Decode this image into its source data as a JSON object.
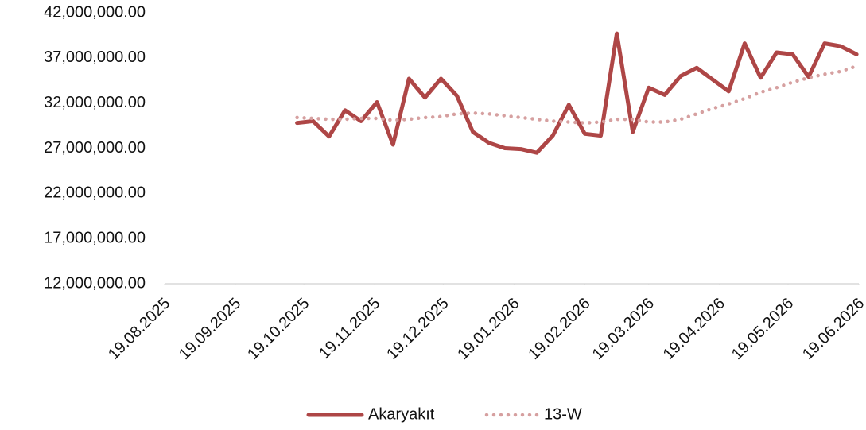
{
  "chart_data": {
    "type": "line",
    "x": [
      "16.10.2025",
      "23.10.2025",
      "30.10.2025",
      "06.11.2025",
      "13.11.2025",
      "20.11.2025",
      "27.11.2025",
      "04.12.2025",
      "11.12.2025",
      "18.12.2025",
      "25.12.2025",
      "01.01.2026",
      "08.01.2026",
      "15.01.2026",
      "22.01.2026",
      "29.01.2026",
      "05.02.2026",
      "12.02.2026",
      "19.02.2026",
      "26.02.2026",
      "05.03.2026",
      "12.03.2026",
      "19.03.2026",
      "26.03.2026",
      "02.04.2026",
      "09.04.2026",
      "16.04.2026",
      "23.04.2026",
      "30.04.2026",
      "07.05.2026",
      "14.05.2026",
      "21.05.2026",
      "28.05.2026",
      "04.06.2026",
      "11.06.2026",
      "18.06.2026"
    ],
    "series": [
      {
        "name": "Akaryakıt",
        "color": "#ae4646",
        "style": "solid",
        "values": [
          29800000,
          30000000,
          28300000,
          31200000,
          30000000,
          32100000,
          27400000,
          34700000,
          32600000,
          34700000,
          32800000,
          28800000,
          27600000,
          27000000,
          26900000,
          26500000,
          28400000,
          31800000,
          28600000,
          28400000,
          39700000,
          28800000,
          33700000,
          32900000,
          35000000,
          35900000,
          34600000,
          33300000,
          38600000,
          34800000,
          37600000,
          37400000,
          34900000,
          38600000,
          38300000,
          37400000
        ]
      },
      {
        "name": "13-W",
        "color": "#d6a0a0",
        "style": "dotted",
        "values": [
          30400000,
          30300000,
          30200000,
          30200000,
          30300000,
          30300000,
          30100000,
          30200000,
          30400000,
          30500000,
          30800000,
          30900000,
          30800000,
          30600000,
          30400000,
          30200000,
          30000000,
          29900000,
          29800000,
          29900000,
          30200000,
          30200000,
          29900000,
          29900000,
          30200000,
          30800000,
          31400000,
          31900000,
          32500000,
          33200000,
          33700000,
          34300000,
          34800000,
          35200000,
          35500000,
          36100000
        ]
      }
    ],
    "xlim": [
      "19.08.2025",
      "19.06.2026"
    ],
    "xticks": [
      "19.08.2025",
      "19.09.2025",
      "19.10.2025",
      "19.11.2025",
      "19.12.2025",
      "19.01.2026",
      "19.02.2026",
      "19.03.2026",
      "19.04.2026",
      "19.05.2026",
      "19.06.2026"
    ],
    "ylim": [
      12000000,
      42000000
    ],
    "yticks": [
      {
        "value": 12000000,
        "label": "12,000,000.00"
      },
      {
        "value": 17000000,
        "label": "17,000,000.00"
      },
      {
        "value": 22000000,
        "label": "22,000,000.00"
      },
      {
        "value": 27000000,
        "label": "27,000,000.00"
      },
      {
        "value": 32000000,
        "label": "32,000,000.00"
      },
      {
        "value": 37000000,
        "label": "37,000,000.00"
      },
      {
        "value": 42000000,
        "label": "42,000,000.00"
      }
    ],
    "grid": false,
    "legend": "bottom"
  }
}
